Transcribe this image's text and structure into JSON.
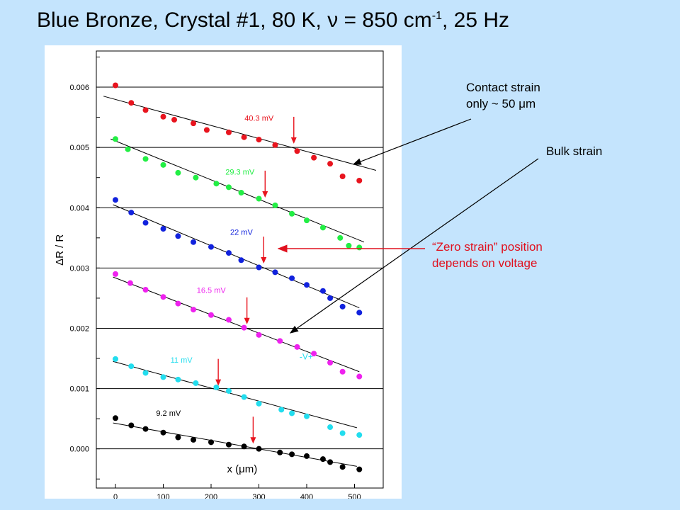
{
  "title": {
    "main": "Blue Bronze, Crystal #1, 80 K, ν = 850 cm",
    "sup": "-1",
    "tail": ", 25 Hz"
  },
  "annotations": {
    "contact": "Contact strain\nonly ~ 50 μm",
    "bulk": "Bulk strain",
    "zero": "“Zero strain” position\ndepends on voltage",
    "zero_color": "#e0101e"
  },
  "chart_data": {
    "type": "scatter",
    "xlabel": "x (μm)",
    "ylabel": "ΔR / R",
    "xlim": [
      -40,
      560
    ],
    "ylim": [
      -0.00065,
      0.0066
    ],
    "xticks": [
      0,
      100,
      200,
      300,
      400,
      500
    ],
    "yticks": [
      0.0,
      0.001,
      0.002,
      0.003,
      0.004,
      0.005,
      0.006
    ],
    "ytick_labels": [
      "0.000",
      "0.001",
      "0.002",
      "0.003",
      "0.004",
      "0.005",
      "0.006"
    ],
    "grid": "horizontal",
    "extra_text": "-V+",
    "series": [
      {
        "name": "40.3 mV",
        "color": "#e8141e",
        "x": [
          0,
          33,
          63,
          100,
          123,
          163,
          191,
          237,
          269,
          300,
          334,
          380,
          415,
          449,
          475,
          510
        ],
        "y": [
          0.00603,
          0.00574,
          0.00562,
          0.00551,
          0.00546,
          0.0054,
          0.00529,
          0.00525,
          0.00517,
          0.00513,
          0.00504,
          0.00494,
          0.00483,
          0.00473,
          0.00452,
          0.00445
        ],
        "fit_x": [
          -25,
          545
        ],
        "fit_y": [
          0.00585,
          0.00462
        ],
        "label_x": 270,
        "label_y": 0.00544,
        "arrow_x": 373
      },
      {
        "name": "29.3 mV",
        "color": "#22ee44",
        "x": [
          0,
          26,
          63,
          100,
          131,
          168,
          211,
          237,
          263,
          300,
          334,
          369,
          400,
          434,
          470,
          488,
          510
        ],
        "y": [
          0.00514,
          0.00497,
          0.00481,
          0.00471,
          0.00458,
          0.0045,
          0.0044,
          0.00434,
          0.00425,
          0.00415,
          0.00404,
          0.0039,
          0.00379,
          0.00367,
          0.0035,
          0.00337,
          0.00334
        ],
        "fit_x": [
          -10,
          520
        ],
        "fit_y": [
          0.00514,
          0.00343
        ],
        "label_x": 230,
        "label_y": 0.00455,
        "arrow_x": 313
      },
      {
        "name": "22 mV",
        "color": "#1122dd",
        "x": [
          0,
          33,
          63,
          100,
          131,
          163,
          200,
          237,
          263,
          300,
          334,
          369,
          400,
          434,
          449,
          475,
          510
        ],
        "y": [
          0.00413,
          0.00392,
          0.00375,
          0.00365,
          0.00353,
          0.00343,
          0.00335,
          0.00325,
          0.00313,
          0.00301,
          0.00293,
          0.00283,
          0.00272,
          0.00262,
          0.0025,
          0.00236,
          0.00226
        ],
        "fit_x": [
          -5,
          510
        ],
        "fit_y": [
          0.00405,
          0.00234
        ],
        "label_x": 240,
        "label_y": 0.00355,
        "arrow_x": 310
      },
      {
        "name": "16.5 mV",
        "color": "#ee22ee",
        "x": [
          0,
          31,
          63,
          100,
          131,
          163,
          200,
          237,
          269,
          300,
          344,
          380,
          415,
          449,
          475,
          510
        ],
        "y": [
          0.0029,
          0.00275,
          0.00264,
          0.00252,
          0.00241,
          0.00231,
          0.00222,
          0.00214,
          0.00201,
          0.00189,
          0.00179,
          0.00169,
          0.00158,
          0.00143,
          0.00128,
          0.0012
        ],
        "fit_x": [
          -5,
          510
        ],
        "fit_y": [
          0.00285,
          0.00128
        ],
        "label_x": 170,
        "label_y": 0.00259,
        "arrow_x": 275
      },
      {
        "name": "11 mV",
        "color": "#22ddee",
        "x": [
          0,
          33,
          63,
          100,
          131,
          168,
          211,
          237,
          269,
          300,
          347,
          369,
          400,
          449,
          475,
          510
        ],
        "y": [
          0.00149,
          0.00137,
          0.00126,
          0.00119,
          0.00115,
          0.00109,
          0.00102,
          0.00096,
          0.00086,
          0.00075,
          0.00065,
          0.00059,
          0.00054,
          0.00036,
          0.00026,
          0.00023
        ],
        "fit_x": [
          -5,
          505
        ],
        "fit_y": [
          0.00145,
          0.00035
        ],
        "label_x": 115,
        "label_y": 0.00143,
        "arrow_x": 215
      },
      {
        "name": "9.2 mV",
        "color": "#000000",
        "x": [
          0,
          33,
          63,
          100,
          131,
          163,
          200,
          237,
          269,
          300,
          344,
          369,
          400,
          434,
          449,
          475,
          510
        ],
        "y": [
          0.00051,
          0.00039,
          0.00033,
          0.00027,
          0.00019,
          0.00015,
          0.00011,
          7e-05,
          4e-05,
          0.0,
          -6e-05,
          -9e-05,
          -0.00012,
          -0.00017,
          -0.00022,
          -0.0003,
          -0.00034
        ],
        "fit_x": [
          -5,
          505
        ],
        "fit_y": [
          0.00043,
          -0.00029
        ],
        "label_x": 85,
        "label_y": 0.00055,
        "arrow_x": 288
      }
    ]
  }
}
